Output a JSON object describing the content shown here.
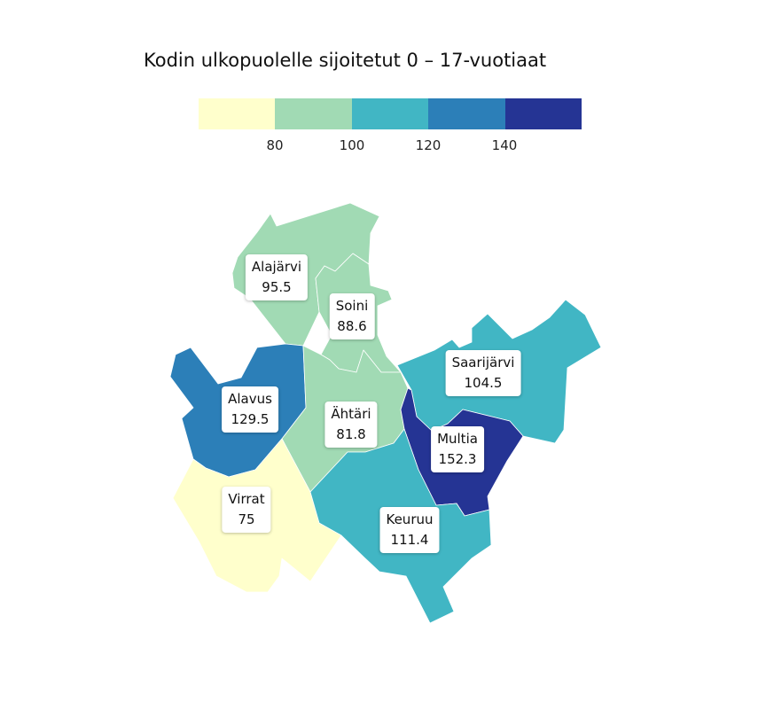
{
  "title": "Kodin ulkopuolelle sijoitetut 0 – 17-vuotiaat",
  "legend": {
    "colors": [
      "#ffffcc",
      "#a1dab4",
      "#41b6c4",
      "#2c7fb8",
      "#253494"
    ],
    "ticks": [
      "80",
      "100",
      "120",
      "140"
    ]
  },
  "regions": [
    {
      "name": "Alajärvi",
      "value": "95.5",
      "color": "#a1dab4"
    },
    {
      "name": "Soini",
      "value": "88.6",
      "color": "#a1dab4"
    },
    {
      "name": "Saarijärvi",
      "value": "104.5",
      "color": "#41b6c4"
    },
    {
      "name": "Alavus",
      "value": "129.5",
      "color": "#2c7fb8"
    },
    {
      "name": "Ähtäri",
      "value": "81.8",
      "color": "#a1dab4"
    },
    {
      "name": "Multia",
      "value": "152.3",
      "color": "#253494"
    },
    {
      "name": "Virrat",
      "value": "75",
      "color": "#ffffcc"
    },
    {
      "name": "Keuruu",
      "value": "111.4",
      "color": "#41b6c4"
    }
  ]
}
